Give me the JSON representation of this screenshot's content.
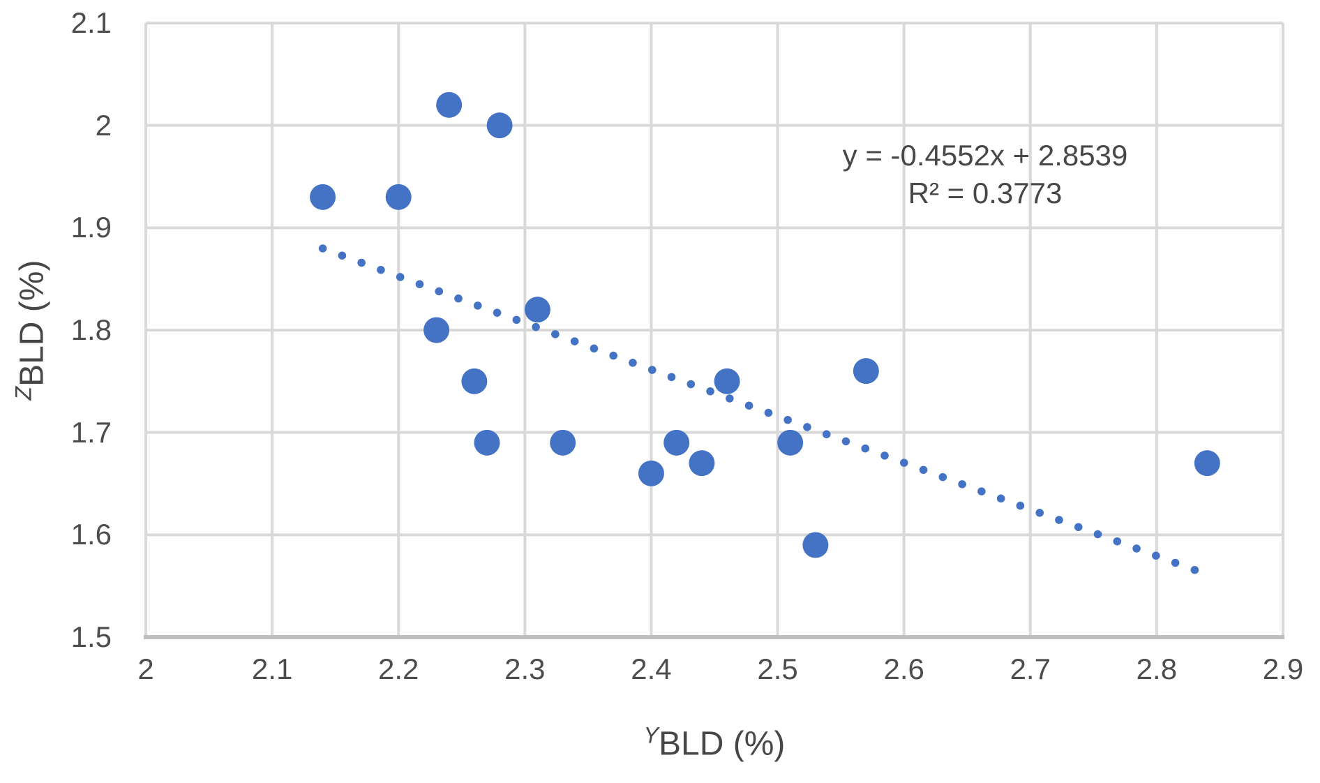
{
  "chart_data": {
    "type": "scatter",
    "points": [
      [
        2.14,
        1.93
      ],
      [
        2.2,
        1.93
      ],
      [
        2.24,
        2.02
      ],
      [
        2.28,
        2.0
      ],
      [
        2.23,
        1.8
      ],
      [
        2.26,
        1.75
      ],
      [
        2.27,
        1.69
      ],
      [
        2.31,
        1.82
      ],
      [
        2.33,
        1.69
      ],
      [
        2.4,
        1.66
      ],
      [
        2.42,
        1.69
      ],
      [
        2.44,
        1.67
      ],
      [
        2.46,
        1.75
      ],
      [
        2.51,
        1.69
      ],
      [
        2.53,
        1.59
      ],
      [
        2.57,
        1.76
      ],
      [
        2.84,
        1.67
      ]
    ],
    "xlim": [
      2.0,
      2.9
    ],
    "ylim": [
      1.5,
      2.1
    ],
    "x_ticks": [
      {
        "value": 2.0,
        "label": "2"
      },
      {
        "value": 2.1,
        "label": "2.1"
      },
      {
        "value": 2.2,
        "label": "2.2"
      },
      {
        "value": 2.3,
        "label": "2.3"
      },
      {
        "value": 2.4,
        "label": "2.4"
      },
      {
        "value": 2.5,
        "label": "2.5"
      },
      {
        "value": 2.6,
        "label": "2.6"
      },
      {
        "value": 2.7,
        "label": "2.7"
      },
      {
        "value": 2.8,
        "label": "2.8"
      },
      {
        "value": 2.9,
        "label": "2.9"
      }
    ],
    "y_ticks": [
      {
        "value": 2.1,
        "label": "2.1"
      },
      {
        "value": 2.0,
        "label": "2"
      },
      {
        "value": 1.9,
        "label": "1.9"
      },
      {
        "value": 1.8,
        "label": "1.8"
      },
      {
        "value": 1.7,
        "label": "1.7"
      },
      {
        "value": 1.6,
        "label": "1.6"
      },
      {
        "value": 1.5,
        "label": "1.5"
      }
    ],
    "grid": true,
    "legend": "none",
    "xlabel_sup": "Y",
    "xlabel": "BLD (%)",
    "ylabel_sup": "Z",
    "ylabel": "BLD (%)",
    "marker_color": "#4472C4",
    "gridline_color": "#D9D9D9",
    "axis_line_color": "#BFBFBF",
    "trendline": {
      "slope": -0.4552,
      "intercept": 2.8539,
      "x_start": 2.14,
      "x_end": 2.84,
      "style": "dotted",
      "color": "#4472C4",
      "equation": "y = -0.4552x + 2.8539",
      "r_squared": "R² = 0.3773"
    }
  }
}
